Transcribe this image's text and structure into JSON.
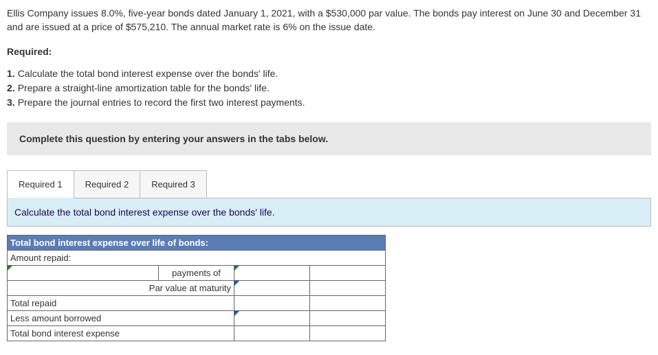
{
  "problem": {
    "text": "Ellis Company issues 8.0%, five-year bonds dated January 1, 2021, with a $530,000 par value. The bonds pay interest on June 30 and December 31 and are issued at a price of $575,210. The annual market rate is 6% on the issue date."
  },
  "required": {
    "label": "Required:",
    "items": [
      {
        "num": "1.",
        "text": "Calculate the total bond interest expense over the bonds' life."
      },
      {
        "num": "2.",
        "text": "Prepare a straight-line amortization table for the bonds' life."
      },
      {
        "num": "3.",
        "text": "Prepare the journal entries to record the first two interest payments."
      }
    ]
  },
  "instruction": "Complete this question by entering your answers in the tabs below.",
  "tabs": {
    "items": [
      {
        "label": "Required 1",
        "active": true
      },
      {
        "label": "Required 2",
        "active": false
      },
      {
        "label": "Required 3",
        "active": false
      }
    ],
    "body_prompt": "Calculate the total bond interest expense over the bonds' life."
  },
  "table": {
    "header": "Total bond interest expense over life of bonds:",
    "rows": {
      "amount_repaid": "Amount repaid:",
      "payments_of": "payments of",
      "par_value": "Par value at maturity",
      "total_repaid": "Total repaid",
      "less_borrowed": "Less amount borrowed",
      "total_expense": "Total bond interest expense"
    }
  }
}
